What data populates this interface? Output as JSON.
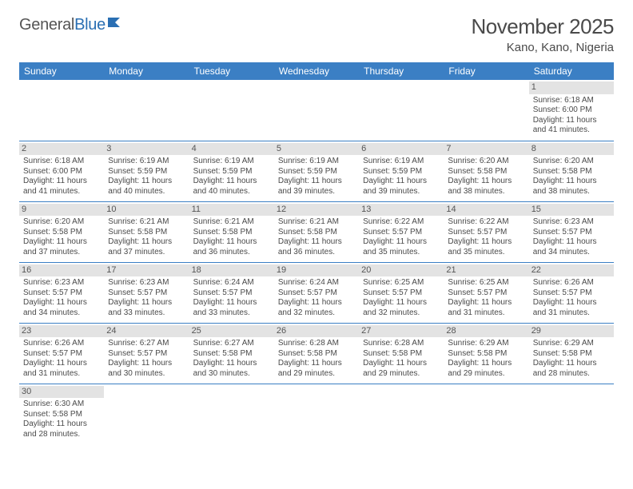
{
  "logo": {
    "part1": "General",
    "part2": "Blue"
  },
  "title": "November 2025",
  "location": "Kano, Kano, Nigeria",
  "colors": {
    "header_bg": "#3b7fc4",
    "header_text": "#ffffff",
    "daynum_bg": "#e3e3e3",
    "cell_border": "#3b7fc4",
    "text": "#4a4a4a",
    "logo_accent": "#2a6fb3"
  },
  "days_of_week": [
    "Sunday",
    "Monday",
    "Tuesday",
    "Wednesday",
    "Thursday",
    "Friday",
    "Saturday"
  ],
  "weeks": [
    [
      null,
      null,
      null,
      null,
      null,
      null,
      {
        "n": "1",
        "sr": "Sunrise: 6:18 AM",
        "ss": "Sunset: 6:00 PM",
        "d1": "Daylight: 11 hours",
        "d2": "and 41 minutes."
      }
    ],
    [
      {
        "n": "2",
        "sr": "Sunrise: 6:18 AM",
        "ss": "Sunset: 6:00 PM",
        "d1": "Daylight: 11 hours",
        "d2": "and 41 minutes."
      },
      {
        "n": "3",
        "sr": "Sunrise: 6:19 AM",
        "ss": "Sunset: 5:59 PM",
        "d1": "Daylight: 11 hours",
        "d2": "and 40 minutes."
      },
      {
        "n": "4",
        "sr": "Sunrise: 6:19 AM",
        "ss": "Sunset: 5:59 PM",
        "d1": "Daylight: 11 hours",
        "d2": "and 40 minutes."
      },
      {
        "n": "5",
        "sr": "Sunrise: 6:19 AM",
        "ss": "Sunset: 5:59 PM",
        "d1": "Daylight: 11 hours",
        "d2": "and 39 minutes."
      },
      {
        "n": "6",
        "sr": "Sunrise: 6:19 AM",
        "ss": "Sunset: 5:59 PM",
        "d1": "Daylight: 11 hours",
        "d2": "and 39 minutes."
      },
      {
        "n": "7",
        "sr": "Sunrise: 6:20 AM",
        "ss": "Sunset: 5:58 PM",
        "d1": "Daylight: 11 hours",
        "d2": "and 38 minutes."
      },
      {
        "n": "8",
        "sr": "Sunrise: 6:20 AM",
        "ss": "Sunset: 5:58 PM",
        "d1": "Daylight: 11 hours",
        "d2": "and 38 minutes."
      }
    ],
    [
      {
        "n": "9",
        "sr": "Sunrise: 6:20 AM",
        "ss": "Sunset: 5:58 PM",
        "d1": "Daylight: 11 hours",
        "d2": "and 37 minutes."
      },
      {
        "n": "10",
        "sr": "Sunrise: 6:21 AM",
        "ss": "Sunset: 5:58 PM",
        "d1": "Daylight: 11 hours",
        "d2": "and 37 minutes."
      },
      {
        "n": "11",
        "sr": "Sunrise: 6:21 AM",
        "ss": "Sunset: 5:58 PM",
        "d1": "Daylight: 11 hours",
        "d2": "and 36 minutes."
      },
      {
        "n": "12",
        "sr": "Sunrise: 6:21 AM",
        "ss": "Sunset: 5:58 PM",
        "d1": "Daylight: 11 hours",
        "d2": "and 36 minutes."
      },
      {
        "n": "13",
        "sr": "Sunrise: 6:22 AM",
        "ss": "Sunset: 5:57 PM",
        "d1": "Daylight: 11 hours",
        "d2": "and 35 minutes."
      },
      {
        "n": "14",
        "sr": "Sunrise: 6:22 AM",
        "ss": "Sunset: 5:57 PM",
        "d1": "Daylight: 11 hours",
        "d2": "and 35 minutes."
      },
      {
        "n": "15",
        "sr": "Sunrise: 6:23 AM",
        "ss": "Sunset: 5:57 PM",
        "d1": "Daylight: 11 hours",
        "d2": "and 34 minutes."
      }
    ],
    [
      {
        "n": "16",
        "sr": "Sunrise: 6:23 AM",
        "ss": "Sunset: 5:57 PM",
        "d1": "Daylight: 11 hours",
        "d2": "and 34 minutes."
      },
      {
        "n": "17",
        "sr": "Sunrise: 6:23 AM",
        "ss": "Sunset: 5:57 PM",
        "d1": "Daylight: 11 hours",
        "d2": "and 33 minutes."
      },
      {
        "n": "18",
        "sr": "Sunrise: 6:24 AM",
        "ss": "Sunset: 5:57 PM",
        "d1": "Daylight: 11 hours",
        "d2": "and 33 minutes."
      },
      {
        "n": "19",
        "sr": "Sunrise: 6:24 AM",
        "ss": "Sunset: 5:57 PM",
        "d1": "Daylight: 11 hours",
        "d2": "and 32 minutes."
      },
      {
        "n": "20",
        "sr": "Sunrise: 6:25 AM",
        "ss": "Sunset: 5:57 PM",
        "d1": "Daylight: 11 hours",
        "d2": "and 32 minutes."
      },
      {
        "n": "21",
        "sr": "Sunrise: 6:25 AM",
        "ss": "Sunset: 5:57 PM",
        "d1": "Daylight: 11 hours",
        "d2": "and 31 minutes."
      },
      {
        "n": "22",
        "sr": "Sunrise: 6:26 AM",
        "ss": "Sunset: 5:57 PM",
        "d1": "Daylight: 11 hours",
        "d2": "and 31 minutes."
      }
    ],
    [
      {
        "n": "23",
        "sr": "Sunrise: 6:26 AM",
        "ss": "Sunset: 5:57 PM",
        "d1": "Daylight: 11 hours",
        "d2": "and 31 minutes."
      },
      {
        "n": "24",
        "sr": "Sunrise: 6:27 AM",
        "ss": "Sunset: 5:57 PM",
        "d1": "Daylight: 11 hours",
        "d2": "and 30 minutes."
      },
      {
        "n": "25",
        "sr": "Sunrise: 6:27 AM",
        "ss": "Sunset: 5:58 PM",
        "d1": "Daylight: 11 hours",
        "d2": "and 30 minutes."
      },
      {
        "n": "26",
        "sr": "Sunrise: 6:28 AM",
        "ss": "Sunset: 5:58 PM",
        "d1": "Daylight: 11 hours",
        "d2": "and 29 minutes."
      },
      {
        "n": "27",
        "sr": "Sunrise: 6:28 AM",
        "ss": "Sunset: 5:58 PM",
        "d1": "Daylight: 11 hours",
        "d2": "and 29 minutes."
      },
      {
        "n": "28",
        "sr": "Sunrise: 6:29 AM",
        "ss": "Sunset: 5:58 PM",
        "d1": "Daylight: 11 hours",
        "d2": "and 29 minutes."
      },
      {
        "n": "29",
        "sr": "Sunrise: 6:29 AM",
        "ss": "Sunset: 5:58 PM",
        "d1": "Daylight: 11 hours",
        "d2": "and 28 minutes."
      }
    ],
    [
      {
        "n": "30",
        "sr": "Sunrise: 6:30 AM",
        "ss": "Sunset: 5:58 PM",
        "d1": "Daylight: 11 hours",
        "d2": "and 28 minutes."
      },
      null,
      null,
      null,
      null,
      null,
      null
    ]
  ]
}
